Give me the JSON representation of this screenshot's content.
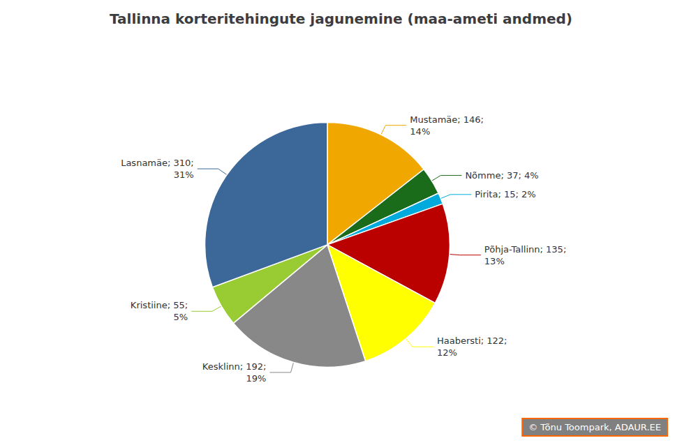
{
  "chart_data": {
    "type": "pie",
    "title": "Tallinna korteritehingute jagunemine (maa-ameti andmed)",
    "categories": [
      "Mustamäe",
      "Nõmme",
      "Pirita",
      "Põhja-Tallinn",
      "Haabersti",
      "Kesklinn",
      "Kristiine",
      "Lasnamäe"
    ],
    "values": [
      146,
      37,
      15,
      135,
      122,
      192,
      55,
      310
    ],
    "value_labels": [
      "Mustamäe; 146;\n14%",
      "Nõmme; 37; 4%",
      "Pirita; 15; 2%",
      "Põhja-Tallinn; 135;\n13%",
      "Haabersti; 122;\n12%",
      "Kesklinn; 192;\n19%",
      "Kristiine; 55;\n5%",
      "Lasnamäe; 310;\n31%"
    ],
    "colors": [
      "#F0A800",
      "#1A6B1A",
      "#00AADD",
      "#BB0000",
      "#FFFF00",
      "#888888",
      "#99CC33",
      "#3C6799"
    ],
    "annotations": [
      "© Tõnu Toompark, ADAUR.EE"
    ],
    "legend": false,
    "data_labels": true
  }
}
